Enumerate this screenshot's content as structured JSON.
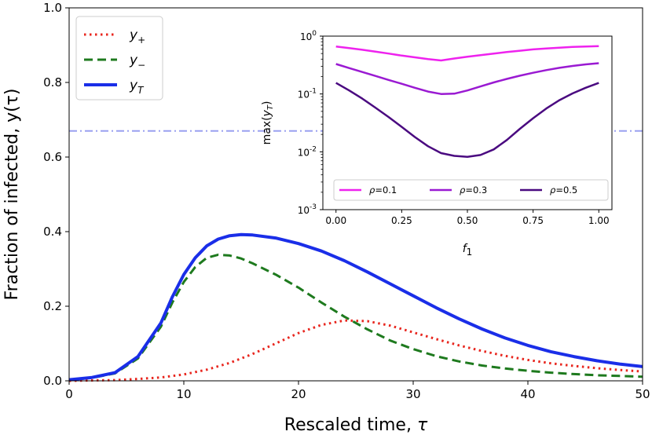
{
  "chart_data": [
    {
      "type": "line",
      "xlabel": "Rescaled time, τ",
      "ylabel": "Fraction of infected, y(τ)",
      "xlim": [
        0,
        50
      ],
      "ylim": [
        0,
        1.0
      ],
      "xticks": [
        "0",
        "10",
        "20",
        "30",
        "40",
        "50"
      ],
      "yticks": [
        "0.0",
        "0.2",
        "0.4",
        "0.6",
        "0.8",
        "1.0"
      ],
      "grid": false,
      "legend_position": "top-left",
      "reference_line": {
        "y": 0.67,
        "style": "dash-dot",
        "color": "#9aa0f0"
      },
      "series": [
        {
          "name": "y+",
          "label_base": "y",
          "label_sub": "+",
          "style": "dotted",
          "color": "#e8261e",
          "x": [
            0,
            2,
            4,
            6,
            8,
            10,
            12,
            14,
            16,
            18,
            20,
            22,
            24,
            26,
            28,
            30,
            32,
            34,
            36,
            38,
            40,
            42,
            44,
            46,
            48,
            50
          ],
          "y": [
            0.0,
            0.001,
            0.002,
            0.005,
            0.009,
            0.017,
            0.03,
            0.048,
            0.072,
            0.1,
            0.128,
            0.15,
            0.162,
            0.16,
            0.148,
            0.13,
            0.112,
            0.095,
            0.08,
            0.067,
            0.056,
            0.047,
            0.04,
            0.034,
            0.029,
            0.025
          ]
        },
        {
          "name": "y−",
          "label_base": "y",
          "label_sub": "−",
          "style": "dashed",
          "color": "#1e7a1e",
          "x": [
            0,
            2,
            4,
            6,
            8,
            9,
            10,
            11,
            12,
            13,
            14,
            15,
            16,
            18,
            20,
            22,
            24,
            26,
            28,
            30,
            32,
            34,
            36,
            38,
            40,
            42,
            44,
            46,
            48,
            50
          ],
          "y": [
            0.003,
            0.008,
            0.02,
            0.06,
            0.145,
            0.21,
            0.265,
            0.305,
            0.33,
            0.338,
            0.336,
            0.328,
            0.315,
            0.285,
            0.25,
            0.21,
            0.172,
            0.138,
            0.108,
            0.085,
            0.066,
            0.052,
            0.041,
            0.033,
            0.027,
            0.022,
            0.018,
            0.015,
            0.013,
            0.011
          ]
        },
        {
          "name": "yT",
          "label_base": "y",
          "label_sub": "T",
          "style": "solid",
          "color": "#1a2ee8",
          "x": [
            0,
            2,
            4,
            6,
            8,
            9,
            10,
            11,
            12,
            13,
            14,
            15,
            16,
            18,
            20,
            22,
            24,
            26,
            28,
            30,
            32,
            34,
            36,
            38,
            40,
            42,
            44,
            46,
            48,
            50
          ],
          "y": [
            0.003,
            0.009,
            0.022,
            0.065,
            0.155,
            0.225,
            0.285,
            0.33,
            0.362,
            0.38,
            0.389,
            0.392,
            0.391,
            0.383,
            0.368,
            0.348,
            0.322,
            0.292,
            0.26,
            0.228,
            0.196,
            0.166,
            0.139,
            0.115,
            0.095,
            0.078,
            0.065,
            0.054,
            0.045,
            0.038
          ]
        }
      ]
    },
    {
      "type": "line",
      "xlabel_base": "f",
      "xlabel_sub": "1",
      "ylabel": "max(yT)",
      "ylabel_base": "max(",
      "ylabel_var": "y",
      "ylabel_sub": "T",
      "ylabel_end": ")",
      "xlim": [
        -0.05,
        1.05
      ],
      "ylim": [
        0.001,
        1
      ],
      "yscale": "log",
      "xticks": [
        "0.00",
        "0.25",
        "0.50",
        "0.75",
        "1.00"
      ],
      "yticks_exp": [
        "-3",
        "-2",
        "-1",
        "0"
      ],
      "ytick_base": "10",
      "legend_position": "bottom",
      "series": [
        {
          "name": "ρ=0.1",
          "color": "#ee22ee",
          "x": [
            0,
            0.05,
            0.1,
            0.15,
            0.2,
            0.25,
            0.3,
            0.35,
            0.4,
            0.45,
            0.5,
            0.55,
            0.6,
            0.65,
            0.7,
            0.75,
            0.8,
            0.85,
            0.9,
            0.95,
            1.0
          ],
          "y": [
            0.66,
            0.62,
            0.58,
            0.54,
            0.5,
            0.46,
            0.43,
            0.4,
            0.38,
            0.41,
            0.44,
            0.47,
            0.5,
            0.53,
            0.56,
            0.59,
            0.61,
            0.63,
            0.65,
            0.66,
            0.67
          ]
        },
        {
          "name": "ρ=0.3",
          "color": "#9a1ad2",
          "x": [
            0,
            0.05,
            0.1,
            0.15,
            0.2,
            0.25,
            0.3,
            0.35,
            0.4,
            0.45,
            0.5,
            0.55,
            0.6,
            0.65,
            0.7,
            0.75,
            0.8,
            0.85,
            0.9,
            0.95,
            1.0
          ],
          "y": [
            0.33,
            0.28,
            0.24,
            0.205,
            0.175,
            0.15,
            0.128,
            0.11,
            0.1,
            0.101,
            0.115,
            0.135,
            0.158,
            0.182,
            0.207,
            0.232,
            0.258,
            0.283,
            0.305,
            0.325,
            0.34
          ]
        },
        {
          "name": "ρ=0.5",
          "color": "#4a0a80",
          "x": [
            0,
            0.05,
            0.1,
            0.15,
            0.2,
            0.25,
            0.3,
            0.35,
            0.4,
            0.45,
            0.5,
            0.55,
            0.6,
            0.65,
            0.7,
            0.75,
            0.8,
            0.85,
            0.9,
            0.95,
            1.0
          ],
          "y": [
            0.155,
            0.115,
            0.083,
            0.058,
            0.04,
            0.027,
            0.018,
            0.0125,
            0.0095,
            0.0085,
            0.0082,
            0.0088,
            0.011,
            0.016,
            0.025,
            0.038,
            0.056,
            0.078,
            0.102,
            0.128,
            0.155
          ]
        }
      ]
    }
  ]
}
